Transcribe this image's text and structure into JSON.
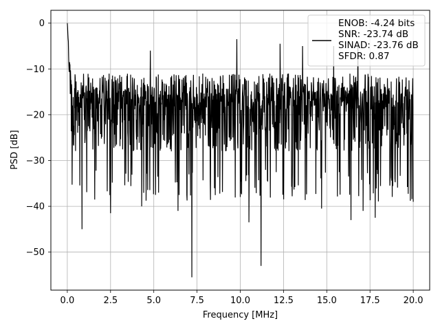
{
  "chart_data": {
    "type": "line",
    "title": "",
    "xlabel": "Frequency [MHz]",
    "ylabel": "PSD [dB]",
    "xlim": [
      -0.95,
      20.95
    ],
    "ylim": [
      -58.3,
      2.8
    ],
    "x_ticks": [
      0.0,
      2.5,
      5.0,
      7.5,
      10.0,
      12.5,
      15.0,
      17.5,
      20.0
    ],
    "x_tick_labels": [
      "0.0",
      "2.5",
      "5.0",
      "7.5",
      "10.0",
      "12.5",
      "15.0",
      "17.5",
      "20.0"
    ],
    "y_ticks": [
      0,
      -10,
      -20,
      -30,
      -40,
      -50
    ],
    "y_tick_labels": [
      "0",
      "−10",
      "−20",
      "−30",
      "−40",
      "−50"
    ],
    "grid": true,
    "legend_position": "top-right",
    "legend": {
      "line_color": "#000000",
      "entries": [
        "ENOB: -4.24 bits",
        "SNR: -23.74 dB",
        "SINAD: -23.76 dB",
        "SFDR: 0.87"
      ]
    },
    "series": [
      {
        "color": "#000000",
        "x_range": [
          0,
          20
        ],
        "noise_floor": {
          "upper_envelope_db": -10,
          "typical_low_db": -30
        },
        "peak": {
          "x": 0.0,
          "y": 0.0
        },
        "deep_nulls": [
          {
            "x": 0.85,
            "y": -45
          },
          {
            "x": 2.5,
            "y": -41.5
          },
          {
            "x": 4.3,
            "y": -40
          },
          {
            "x": 5.1,
            "y": -37.5
          },
          {
            "x": 6.4,
            "y": -41
          },
          {
            "x": 7.2,
            "y": -55.5
          },
          {
            "x": 10.5,
            "y": -43.5
          },
          {
            "x": 11.2,
            "y": -53
          },
          {
            "x": 14.7,
            "y": -40.5
          },
          {
            "x": 16.4,
            "y": -43
          },
          {
            "x": 17.1,
            "y": -41
          },
          {
            "x": 17.8,
            "y": -42.5
          },
          {
            "x": 20.0,
            "y": -39
          }
        ],
        "high_peaks": [
          {
            "x": 4.8,
            "y": -6
          },
          {
            "x": 9.8,
            "y": -3.5
          },
          {
            "x": 12.3,
            "y": -4.5
          },
          {
            "x": 13.6,
            "y": -5
          },
          {
            "x": 15.4,
            "y": -5
          },
          {
            "x": 16.8,
            "y": -4.5
          }
        ]
      }
    ]
  }
}
